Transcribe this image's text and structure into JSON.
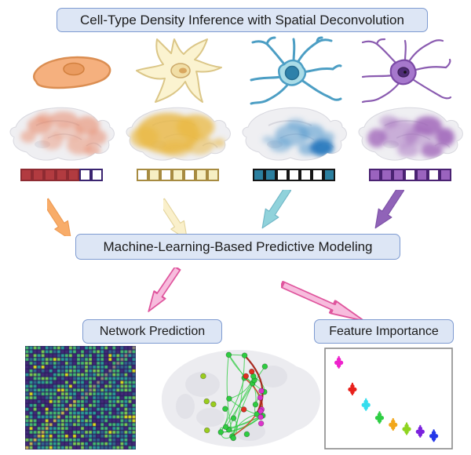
{
  "header": {
    "title": "Cell-Type Density Inference with Spatial Deconvolution"
  },
  "ml_box": {
    "label": "Machine-Learning-Based Predictive Modeling"
  },
  "outputs": {
    "network": {
      "label": "Network Prediction"
    },
    "feature": {
      "label": "Feature Importance"
    }
  },
  "panel_style": {
    "fill": "#DDE6F5",
    "border": "#7D9AD1",
    "text": "#1B1B1B"
  },
  "cell_types": [
    {
      "name": "cell-type-1",
      "icon": "crescent-cell",
      "brain_overlay": "#E8825F",
      "vector": [
        1,
        1,
        1,
        1,
        1,
        0,
        0
      ],
      "vector_fill": "#B23B40",
      "vector_border_filled": "#8E2B32",
      "vector_border_empty": "#3A2470",
      "arrow_fill": "#F8AC69",
      "arrow_stroke": "#ED9A52"
    },
    {
      "name": "cell-type-2",
      "icon": "astrocyte-like-cell",
      "brain_overlay": "#EAB842",
      "vector": [
        0,
        1,
        0,
        1,
        0,
        1,
        1
      ],
      "vector_fill": "#F6EFC3",
      "vector_border_filled": "#A78B41",
      "vector_border_empty": "#A78B41",
      "arrow_fill": "#FAF0CB",
      "arrow_stroke": "#E3D49C"
    },
    {
      "name": "cell-type-3",
      "icon": "teal-neuron",
      "brain_overlay": "#4D96CC",
      "brain_overlay_dark": "#2878BE",
      "vector": [
        1,
        1,
        0,
        0,
        0,
        0,
        1
      ],
      "vector_fill": "#2B7F9F",
      "vector_border_filled": "#151515",
      "vector_border_empty": "#151515",
      "arrow_fill": "#90D2DB",
      "arrow_stroke": "#6FB6C6"
    },
    {
      "name": "cell-type-4",
      "icon": "purple-neuron",
      "brain_overlay": "#9C5FB7",
      "vector": [
        1,
        1,
        1,
        0,
        1,
        0,
        1
      ],
      "vector_fill": "#9A63BE",
      "vector_border_filled": "#4A2272",
      "vector_border_empty": "#4A2272",
      "arrow_fill": "#9063B8",
      "arrow_stroke": "#7C50A6"
    }
  ],
  "flow": {
    "pink_fill": "#F7BCDD",
    "pink_stroke": "#DF559D"
  },
  "heatmap": {
    "bg": "#2A1E5E",
    "rows": 27,
    "cols": 28,
    "palette": [
      "#432A78",
      "#31688E",
      "#2AA198",
      "#44BF70",
      "#7AD151",
      "#DFE318"
    ],
    "weights": [
      0.26,
      0.14,
      0.18,
      0.25,
      0.13,
      0.04
    ],
    "diag_colors": [
      "#C8B84E",
      "#8E8E7A"
    ]
  },
  "network_plot": {
    "brain_gray": "#ECECF0",
    "edge_color": "#2ECC40",
    "edge_red": "#D4442A",
    "node_colors": {
      "green": "#2ECC40",
      "magenta": "#DD33CC",
      "lime": "#9ACD1E",
      "red": "#E03020"
    }
  },
  "feature_plot": {
    "border": "#8A8A8A",
    "points": [
      {
        "color": "#EE22CC",
        "x": 0.06,
        "y": 0.08
      },
      {
        "color": "#E8211C",
        "x": 0.18,
        "y": 0.39
      },
      {
        "color": "#35DDEE",
        "x": 0.3,
        "y": 0.57
      },
      {
        "color": "#2FCE44",
        "x": 0.42,
        "y": 0.72
      },
      {
        "color": "#F2A71B",
        "x": 0.54,
        "y": 0.8
      },
      {
        "color": "#8FD420",
        "x": 0.66,
        "y": 0.85
      },
      {
        "color": "#7B22DD",
        "x": 0.78,
        "y": 0.88
      },
      {
        "color": "#2337E8",
        "x": 0.9,
        "y": 0.93
      }
    ]
  }
}
